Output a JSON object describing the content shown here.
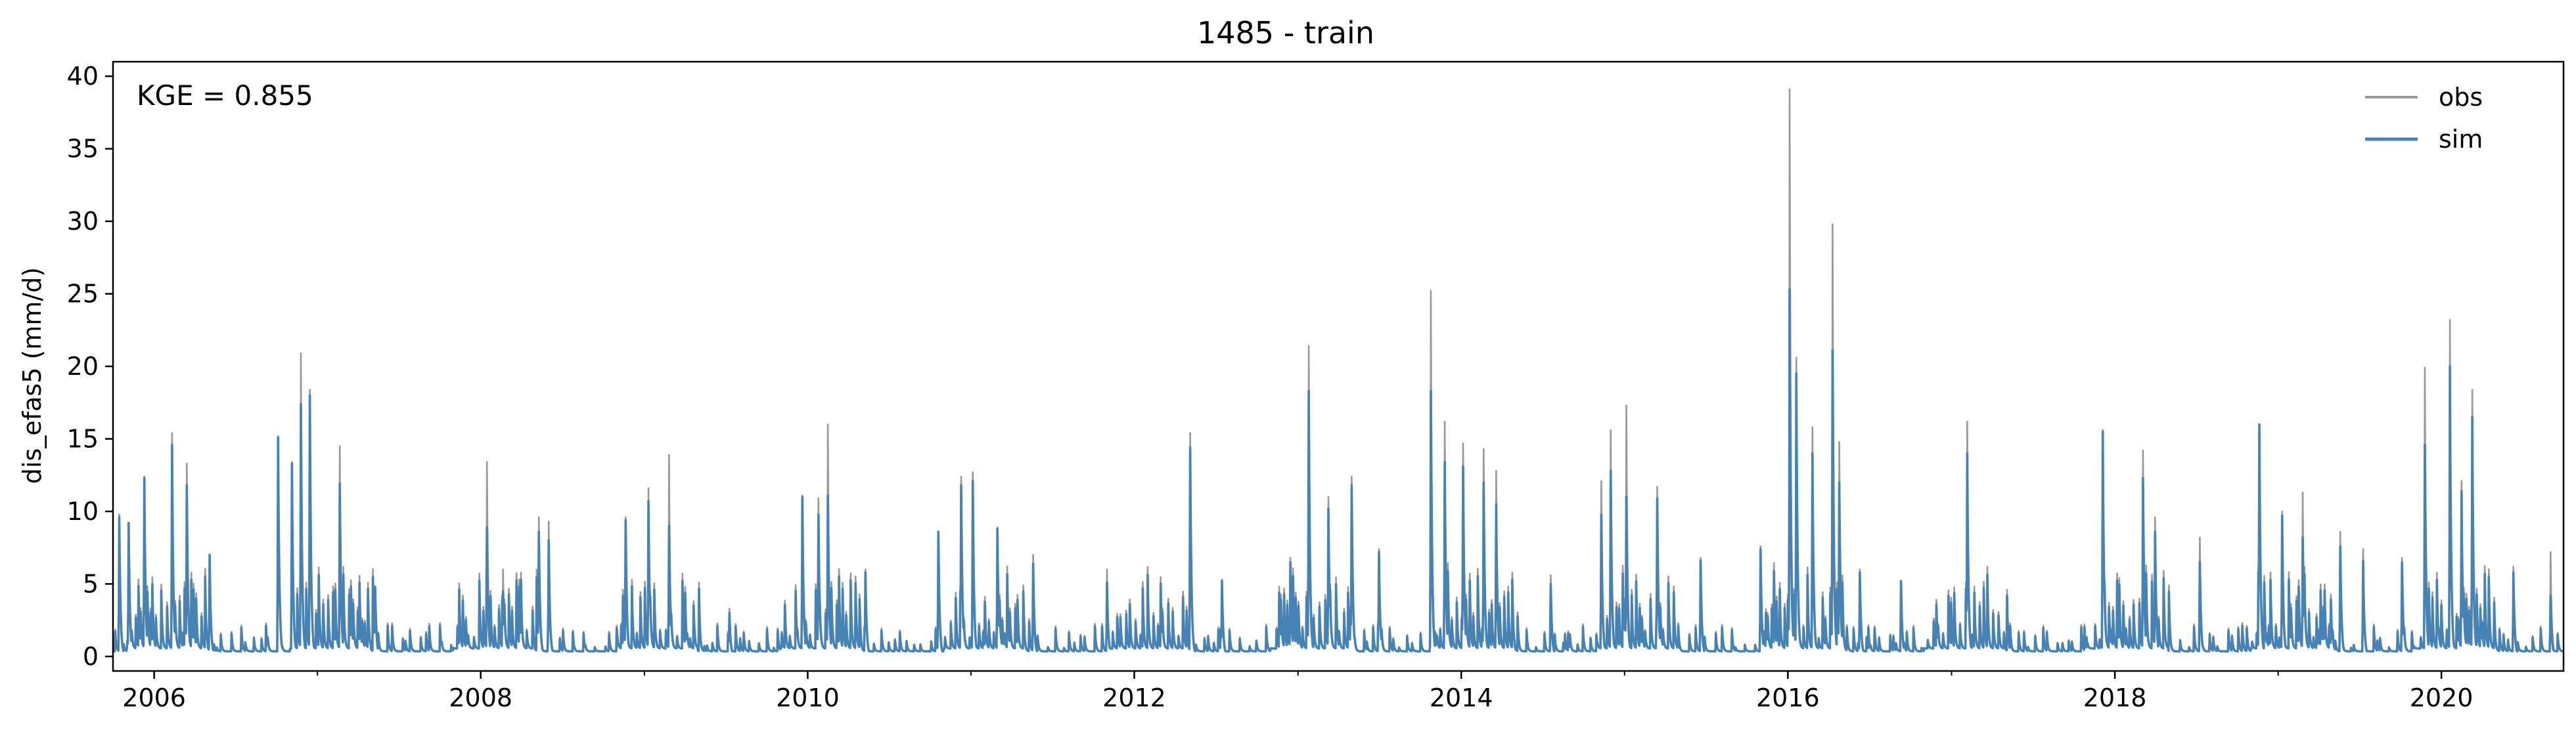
{
  "chart_data": {
    "type": "line",
    "title": "1485 - train",
    "ylabel": "dis_efas5 (mm/d)",
    "xlabel": "",
    "annotation": "KGE = 0.855",
    "xlim": [
      "2005-10-01",
      "2020-09-30"
    ],
    "ylim": [
      -1,
      41
    ],
    "yticks": [
      0,
      5,
      10,
      15,
      20,
      25,
      30,
      35,
      40
    ],
    "xticks": [
      {
        "label": "2006",
        "date": "2006-01-01"
      },
      {
        "label": "2008",
        "date": "2008-01-01"
      },
      {
        "label": "2010",
        "date": "2010-01-01"
      },
      {
        "label": "2012",
        "date": "2012-01-01"
      },
      {
        "label": "2014",
        "date": "2014-01-01"
      },
      {
        "label": "2016",
        "date": "2016-01-01"
      },
      {
        "label": "2018",
        "date": "2018-01-01"
      },
      {
        "label": "2020",
        "date": "2020-01-01"
      }
    ],
    "legend": {
      "position": "top-right",
      "frame": false
    },
    "grid": false,
    "series": [
      {
        "name": "obs",
        "color": "#999999",
        "peaks": [
          [
            "2005-10-15",
            9.8
          ],
          [
            "2005-11-05",
            9.0
          ],
          [
            "2005-12-10",
            12.4
          ],
          [
            "2006-02-10",
            15.4
          ],
          [
            "2006-03-15",
            13.3
          ],
          [
            "2006-05-05",
            7.0
          ],
          [
            "2006-10-05",
            15.2
          ],
          [
            "2006-11-05",
            13.4
          ],
          [
            "2006-11-25",
            20.9
          ],
          [
            "2006-12-15",
            18.4
          ],
          [
            "2007-02-20",
            14.5
          ],
          [
            "2007-05-10",
            4.8
          ],
          [
            "2008-01-15",
            13.4
          ],
          [
            "2008-02-20",
            6.0
          ],
          [
            "2008-05-10",
            9.6
          ],
          [
            "2008-06-01",
            9.3
          ],
          [
            "2008-11-20",
            9.6
          ],
          [
            "2009-01-10",
            11.6
          ],
          [
            "2009-02-25",
            13.9
          ],
          [
            "2009-07-10",
            3.3
          ],
          [
            "2009-12-20",
            11.1
          ],
          [
            "2010-01-25",
            10.9
          ],
          [
            "2010-02-15",
            16.0
          ],
          [
            "2010-05-10",
            6.0
          ],
          [
            "2010-10-20",
            8.6
          ],
          [
            "2010-12-10",
            12.4
          ],
          [
            "2011-01-05",
            12.7
          ],
          [
            "2011-03-01",
            8.9
          ],
          [
            "2011-05-20",
            7.0
          ],
          [
            "2011-11-01",
            6.0
          ],
          [
            "2012-05-05",
            15.4
          ],
          [
            "2012-07-15",
            5.3
          ],
          [
            "2012-12-15",
            6.8
          ],
          [
            "2013-01-25",
            21.4
          ],
          [
            "2013-03-10",
            11.0
          ],
          [
            "2013-05-01",
            12.4
          ],
          [
            "2013-07-01",
            7.4
          ],
          [
            "2013-10-25",
            25.2
          ],
          [
            "2013-11-25",
            16.2
          ],
          [
            "2014-01-05",
            14.7
          ],
          [
            "2014-02-20",
            14.3
          ],
          [
            "2014-03-20",
            12.8
          ],
          [
            "2014-07-20",
            5.6
          ],
          [
            "2014-11-10",
            12.1
          ],
          [
            "2014-12-01",
            15.6
          ],
          [
            "2015-01-05",
            17.3
          ],
          [
            "2015-03-15",
            11.7
          ],
          [
            "2015-06-20",
            6.8
          ],
          [
            "2015-11-01",
            7.6
          ],
          [
            "2016-01-05",
            39.1
          ],
          [
            "2016-01-20",
            20.6
          ],
          [
            "2016-02-25",
            15.8
          ],
          [
            "2016-04-10",
            29.8
          ],
          [
            "2016-04-25",
            14.8
          ],
          [
            "2016-06-10",
            6.0
          ],
          [
            "2016-09-10",
            5.2
          ],
          [
            "2017-02-05",
            16.2
          ],
          [
            "2017-12-05",
            15.6
          ],
          [
            "2018-03-05",
            14.2
          ],
          [
            "2018-04-01",
            9.6
          ],
          [
            "2018-07-10",
            8.2
          ],
          [
            "2018-11-20",
            16.0
          ],
          [
            "2019-01-10",
            10.0
          ],
          [
            "2019-02-25",
            11.3
          ],
          [
            "2019-05-20",
            8.6
          ],
          [
            "2019-07-10",
            7.4
          ],
          [
            "2019-10-05",
            6.8
          ],
          [
            "2019-11-25",
            19.9
          ],
          [
            "2020-01-20",
            23.2
          ],
          [
            "2020-02-15",
            12.1
          ],
          [
            "2020-03-10",
            18.4
          ],
          [
            "2020-06-10",
            6.2
          ],
          [
            "2020-09-01",
            7.2
          ]
        ]
      },
      {
        "name": "sim",
        "color": "#4682b4",
        "peaks": [
          [
            "2005-10-15",
            9.6
          ],
          [
            "2005-11-05",
            9.2
          ],
          [
            "2005-12-10",
            12.3
          ],
          [
            "2006-02-10",
            14.6
          ],
          [
            "2006-03-15",
            11.8
          ],
          [
            "2006-05-05",
            7.0
          ],
          [
            "2006-10-05",
            15.1
          ],
          [
            "2006-11-05",
            13.3
          ],
          [
            "2006-11-25",
            17.4
          ],
          [
            "2006-12-15",
            18.0
          ],
          [
            "2007-02-20",
            11.9
          ],
          [
            "2007-05-10",
            4.8
          ],
          [
            "2008-01-15",
            8.9
          ],
          [
            "2008-02-20",
            4.5
          ],
          [
            "2008-05-10",
            8.6
          ],
          [
            "2008-06-01",
            8.0
          ],
          [
            "2008-11-20",
            9.4
          ],
          [
            "2009-01-10",
            10.7
          ],
          [
            "2009-02-25",
            9.0
          ],
          [
            "2009-07-10",
            3.0
          ],
          [
            "2009-12-20",
            11.0
          ],
          [
            "2010-01-25",
            9.8
          ],
          [
            "2010-02-15",
            11.1
          ],
          [
            "2010-05-10",
            5.8
          ],
          [
            "2010-10-20",
            8.6
          ],
          [
            "2010-12-10",
            11.8
          ],
          [
            "2011-01-05",
            12.1
          ],
          [
            "2011-03-01",
            8.8
          ],
          [
            "2011-05-20",
            6.4
          ],
          [
            "2011-11-01",
            5.1
          ],
          [
            "2012-05-05",
            14.4
          ],
          [
            "2012-07-15",
            5.2
          ],
          [
            "2012-12-15",
            6.5
          ],
          [
            "2013-01-25",
            18.3
          ],
          [
            "2013-03-10",
            10.2
          ],
          [
            "2013-05-01",
            11.8
          ],
          [
            "2013-07-01",
            7.2
          ],
          [
            "2013-10-25",
            18.3
          ],
          [
            "2013-11-25",
            13.4
          ],
          [
            "2014-01-05",
            13.1
          ],
          [
            "2014-02-20",
            12.0
          ],
          [
            "2014-03-20",
            10.5
          ],
          [
            "2014-07-20",
            5.0
          ],
          [
            "2014-11-10",
            9.8
          ],
          [
            "2014-12-01",
            12.8
          ],
          [
            "2015-01-05",
            11.0
          ],
          [
            "2015-03-15",
            10.9
          ],
          [
            "2015-06-20",
            6.6
          ],
          [
            "2015-11-01",
            7.4
          ],
          [
            "2016-01-05",
            25.3
          ],
          [
            "2016-01-20",
            19.5
          ],
          [
            "2016-02-25",
            14.0
          ],
          [
            "2016-04-10",
            21.1
          ],
          [
            "2016-04-25",
            12.0
          ],
          [
            "2016-06-10",
            5.8
          ],
          [
            "2016-09-10",
            5.2
          ],
          [
            "2017-02-05",
            14.0
          ],
          [
            "2017-12-05",
            15.5
          ],
          [
            "2018-03-05",
            12.3
          ],
          [
            "2018-04-01",
            8.6
          ],
          [
            "2018-07-10",
            6.5
          ],
          [
            "2018-11-20",
            16.0
          ],
          [
            "2019-01-10",
            9.7
          ],
          [
            "2019-02-25",
            8.2
          ],
          [
            "2019-05-20",
            7.6
          ],
          [
            "2019-07-10",
            6.6
          ],
          [
            "2019-10-05",
            6.5
          ],
          [
            "2019-11-25",
            14.6
          ],
          [
            "2020-01-20",
            20.0
          ],
          [
            "2020-02-15",
            11.4
          ],
          [
            "2020-03-10",
            16.5
          ],
          [
            "2020-06-10",
            5.8
          ],
          [
            "2020-09-01",
            4.2
          ]
        ]
      }
    ]
  }
}
